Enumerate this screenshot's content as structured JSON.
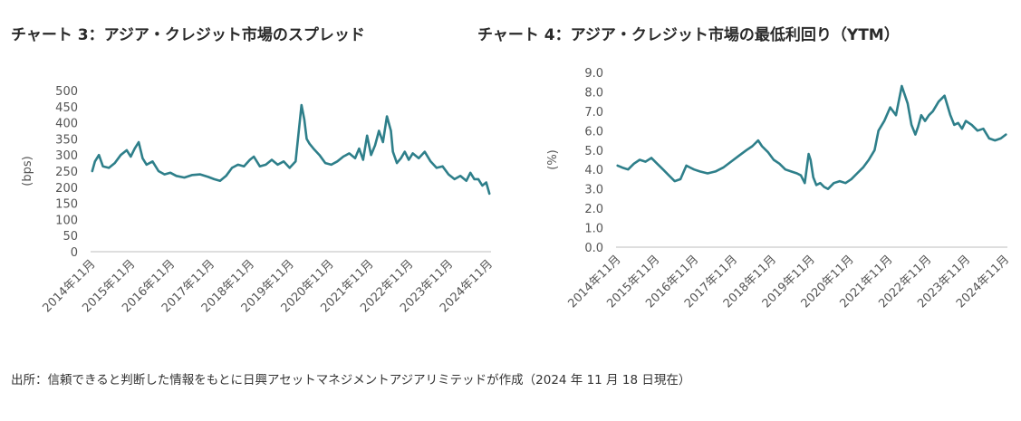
{
  "source_note": "出所：信頼できると判断した情報をもとに日興アセットマネジメントアジアリミテッドが作成（2024 年 11 月 18 日現在）",
  "colors": {
    "line": "#2e7f8a",
    "axis": "#bdbdbd"
  },
  "chart_data": [
    {
      "type": "line",
      "title": "チャート 3：アジア・クレジット市場のスプレッド",
      "xlabel": "",
      "ylabel": "(bps)",
      "ylim": [
        0,
        500
      ],
      "yticks": [
        "0",
        "50",
        "100",
        "150",
        "200",
        "250",
        "300",
        "350",
        "400",
        "450",
        "500"
      ],
      "xticks": [
        "2014年11月",
        "2015年11月",
        "2016年11月",
        "2017年11月",
        "2018年11月",
        "2019年11月",
        "2020年11月",
        "2021年11月",
        "2022年11月",
        "2023年11月",
        "2024年11月"
      ],
      "series": [
        {
          "x": [
            2014.88,
            2014.95,
            2015.05,
            2015.15,
            2015.3,
            2015.45,
            2015.6,
            2015.75,
            2015.85,
            2015.95,
            2016.05,
            2016.15,
            2016.25,
            2016.4,
            2016.55,
            2016.7,
            2016.85,
            2017.0,
            2017.2,
            2017.4,
            2017.6,
            2017.8,
            2017.95,
            2018.1,
            2018.25,
            2018.4,
            2018.55,
            2018.7,
            2018.85,
            2018.95,
            2019.1,
            2019.25,
            2019.4,
            2019.55,
            2019.7,
            2019.85,
            2020.0,
            2020.15,
            2020.22,
            2020.28,
            2020.35,
            2020.45,
            2020.6,
            2020.75,
            2020.9,
            2021.05,
            2021.2,
            2021.35,
            2021.5,
            2021.6,
            2021.7,
            2021.8,
            2021.9,
            2022.0,
            2022.1,
            2022.2,
            2022.3,
            2022.4,
            2022.45,
            2022.55,
            2022.65,
            2022.75,
            2022.85,
            2022.95,
            2023.1,
            2023.25,
            2023.4,
            2023.55,
            2023.7,
            2023.85,
            2024.0,
            2024.15,
            2024.3,
            2024.4,
            2024.5,
            2024.6,
            2024.7,
            2024.8,
            2024.88
          ],
          "values": [
            250,
            280,
            300,
            265,
            260,
            275,
            300,
            315,
            295,
            320,
            340,
            290,
            270,
            280,
            250,
            240,
            245,
            235,
            230,
            238,
            240,
            232,
            225,
            220,
            235,
            260,
            270,
            265,
            285,
            295,
            265,
            270,
            285,
            270,
            280,
            260,
            280,
            455,
            410,
            350,
            335,
            320,
            300,
            275,
            270,
            280,
            295,
            305,
            290,
            320,
            285,
            360,
            300,
            330,
            375,
            340,
            420,
            375,
            310,
            275,
            290,
            310,
            285,
            305,
            290,
            310,
            280,
            260,
            265,
            240,
            225,
            235,
            220,
            245,
            225,
            225,
            205,
            215,
            180
          ]
        }
      ]
    },
    {
      "type": "line",
      "title": "チャート 4：アジア・クレジット市場の最低利回り（YTM）",
      "xlabel": "",
      "ylabel": "(%)",
      "ylim": [
        0,
        9
      ],
      "yticks": [
        "0.0",
        "1.0",
        "2.0",
        "3.0",
        "4.0",
        "5.0",
        "6.0",
        "7.0",
        "8.0",
        "9.0"
      ],
      "xticks": [
        "2014年11月",
        "2015年11月",
        "2016年11月",
        "2017年11月",
        "2018年11月",
        "2019年11月",
        "2020年11月",
        "2021年11月",
        "2022年11月",
        "2023年11月",
        "2024年11月"
      ],
      "series": [
        {
          "x": [
            2014.88,
            2015.0,
            2015.15,
            2015.3,
            2015.45,
            2015.6,
            2015.75,
            2015.9,
            2016.05,
            2016.2,
            2016.35,
            2016.5,
            2016.65,
            2016.75,
            2016.85,
            2017.0,
            2017.2,
            2017.4,
            2017.6,
            2017.8,
            2018.0,
            2018.2,
            2018.35,
            2018.5,
            2018.6,
            2018.75,
            2018.9,
            2019.05,
            2019.2,
            2019.35,
            2019.5,
            2019.6,
            2019.7,
            2019.8,
            2019.85,
            2019.92,
            2020.0,
            2020.1,
            2020.2,
            2020.3,
            2020.45,
            2020.6,
            2020.75,
            2020.9,
            2021.05,
            2021.2,
            2021.35,
            2021.5,
            2021.6,
            2021.75,
            2021.9,
            2022.05,
            2022.2,
            2022.35,
            2022.45,
            2022.55,
            2022.62,
            2022.7,
            2022.8,
            2022.9,
            2023.0,
            2023.15,
            2023.3,
            2023.45,
            2023.55,
            2023.65,
            2023.75,
            2023.85,
            2024.0,
            2024.15,
            2024.3,
            2024.45,
            2024.6,
            2024.75,
            2024.88
          ],
          "values": [
            4.2,
            4.1,
            4.0,
            4.3,
            4.5,
            4.4,
            4.6,
            4.3,
            4.0,
            3.7,
            3.4,
            3.5,
            4.2,
            4.1,
            4.0,
            3.9,
            3.8,
            3.9,
            4.1,
            4.4,
            4.7,
            5.0,
            5.2,
            5.5,
            5.2,
            4.9,
            4.5,
            4.3,
            4.0,
            3.9,
            3.8,
            3.7,
            3.3,
            4.8,
            4.5,
            3.6,
            3.2,
            3.3,
            3.1,
            3.0,
            3.3,
            3.4,
            3.3,
            3.5,
            3.8,
            4.1,
            4.5,
            5.0,
            6.0,
            6.5,
            7.2,
            6.8,
            8.3,
            7.4,
            6.3,
            5.8,
            6.2,
            6.8,
            6.5,
            6.8,
            7.0,
            7.5,
            7.8,
            6.8,
            6.3,
            6.4,
            6.1,
            6.5,
            6.3,
            6.0,
            6.1,
            5.6,
            5.5,
            5.6,
            5.8
          ]
        }
      ]
    }
  ]
}
